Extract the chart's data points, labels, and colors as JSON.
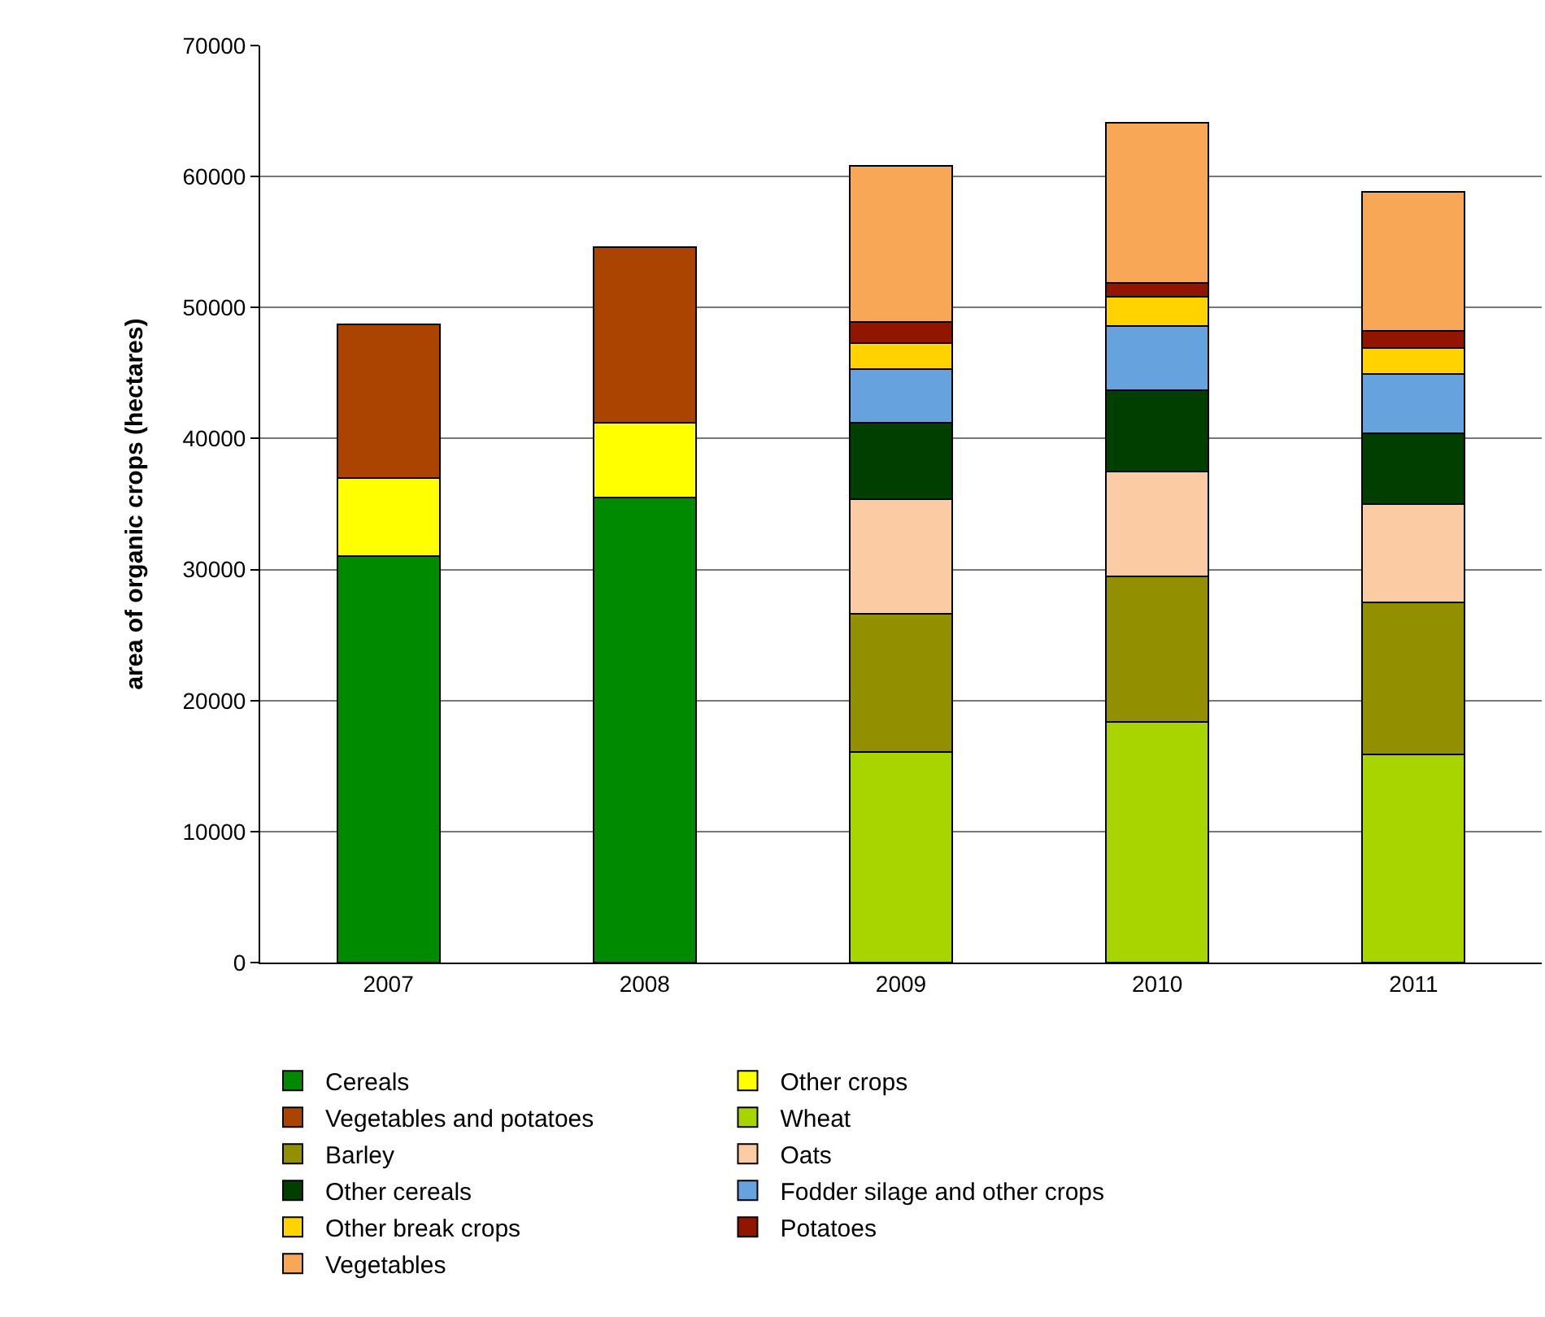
{
  "chart_data": {
    "type": "bar",
    "stacked": true,
    "ylabel": "area of organic crops (hectares)",
    "categories": [
      "2007",
      "2008",
      "2009",
      "2010",
      "2011"
    ],
    "ylim": [
      0,
      70000
    ],
    "yticks": [
      0,
      10000,
      20000,
      30000,
      40000,
      50000,
      60000,
      70000
    ],
    "grid": "y",
    "legend": "bottom",
    "series": [
      {
        "name": "Cereals",
        "color": "#008a00",
        "values": [
          31000,
          35500,
          null,
          null,
          null
        ]
      },
      {
        "name": "Other crops",
        "color": "#ffff00",
        "values": [
          6000,
          5700,
          null,
          null,
          null
        ]
      },
      {
        "name": "Vegetables and potatoes",
        "color": "#aa4400",
        "values": [
          11700,
          13400,
          null,
          null,
          null
        ]
      },
      {
        "name": "Wheat",
        "color": "#a8d400",
        "values": [
          null,
          null,
          16100,
          18400,
          15900
        ]
      },
      {
        "name": "Barley",
        "color": "#929000",
        "values": [
          null,
          null,
          10500,
          11100,
          11600
        ]
      },
      {
        "name": "Oats",
        "color": "#fbcba3",
        "values": [
          null,
          null,
          8800,
          8000,
          7500
        ]
      },
      {
        "name": "Other cereals",
        "color": "#003f00",
        "values": [
          null,
          null,
          5800,
          6200,
          5400
        ]
      },
      {
        "name": "Fodder silage and other crops",
        "color": "#66a2dd",
        "values": [
          null,
          null,
          4100,
          4900,
          4500
        ]
      },
      {
        "name": "Other break crops",
        "color": "#ffd200",
        "values": [
          null,
          null,
          2000,
          2200,
          2000
        ]
      },
      {
        "name": "Potatoes",
        "color": "#921500",
        "values": [
          null,
          null,
          1600,
          1100,
          1300
        ]
      },
      {
        "name": "Vegetables",
        "color": "#f8a757",
        "values": [
          null,
          null,
          11900,
          12200,
          10600
        ]
      }
    ]
  }
}
